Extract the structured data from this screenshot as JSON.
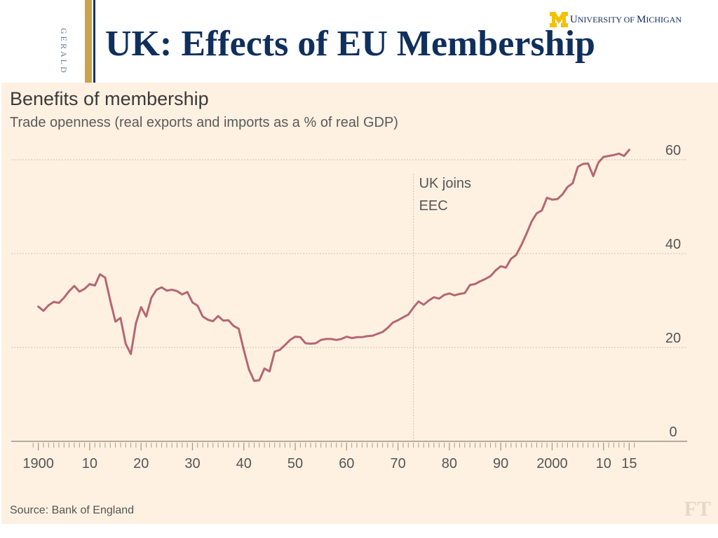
{
  "sidebar": {
    "label": "GERALD"
  },
  "header": {
    "university": {
      "initial": "U",
      "first": "NIVERSITY OF",
      "second_initial": "M",
      "second": "ICHIGAN"
    }
  },
  "slide": {
    "title": "UK:  Effects of EU Membership"
  },
  "colors": {
    "line": "#b56673",
    "grid": "#c9bfb3",
    "panel_bg": "#fff1e2",
    "title": "#0f2f5d",
    "gold": "#c9a44a",
    "navy": "#17345e"
  },
  "chart_data": {
    "type": "line",
    "title": "Benefits of membership",
    "subtitle": "Trade openness (real exports and imports as a % of real GDP)",
    "xlabel": "",
    "ylabel": "",
    "xlim": [
      1898,
      2020
    ],
    "ylim": [
      0,
      60
    ],
    "x_ticks": [
      1900,
      1910,
      1920,
      1930,
      1940,
      1950,
      1960,
      1970,
      1980,
      1990,
      2000,
      2010,
      2015
    ],
    "x_tick_labels": [
      "1900",
      "10",
      "20",
      "30",
      "40",
      "50",
      "60",
      "70",
      "80",
      "90",
      "2000",
      "10",
      "15"
    ],
    "y_ticks": [
      0,
      20,
      40,
      60
    ],
    "y_tick_labels": [
      "0",
      "20",
      "40",
      "60"
    ],
    "annotation": {
      "x": 1973,
      "line1": "UK joins",
      "line2": "EEC"
    },
    "source": "Source: Bank of England",
    "brand": "FT",
    "series": [
      {
        "name": "Trade openness",
        "x": [
          1900,
          1901,
          1902,
          1903,
          1904,
          1905,
          1906,
          1907,
          1908,
          1909,
          1910,
          1911,
          1912,
          1913,
          1914,
          1915,
          1916,
          1917,
          1918,
          1919,
          1920,
          1921,
          1922,
          1923,
          1924,
          1925,
          1926,
          1927,
          1928,
          1929,
          1930,
          1931,
          1932,
          1933,
          1934,
          1935,
          1936,
          1937,
          1938,
          1939,
          1940,
          1941,
          1942,
          1943,
          1944,
          1945,
          1946,
          1947,
          1948,
          1949,
          1950,
          1951,
          1952,
          1953,
          1954,
          1955,
          1956,
          1957,
          1958,
          1959,
          1960,
          1961,
          1962,
          1963,
          1964,
          1965,
          1966,
          1967,
          1968,
          1969,
          1970,
          1971,
          1972,
          1973,
          1974,
          1975,
          1976,
          1977,
          1978,
          1979,
          1980,
          1981,
          1982,
          1983,
          1984,
          1985,
          1986,
          1987,
          1988,
          1989,
          1990,
          1991,
          1992,
          1993,
          1994,
          1995,
          1996,
          1997,
          1998,
          1999,
          2000,
          2001,
          2002,
          2003,
          2004,
          2005,
          2006,
          2007,
          2008,
          2009,
          2010,
          2011,
          2012,
          2013,
          2014,
          2015
        ],
        "values": [
          28.7,
          27.8,
          29.0,
          29.7,
          29.5,
          30.6,
          32.0,
          33.1,
          31.9,
          32.5,
          33.5,
          33.2,
          35.6,
          34.9,
          30.0,
          25.5,
          26.3,
          20.8,
          18.6,
          25.2,
          28.6,
          26.6,
          30.6,
          32.3,
          32.8,
          32.1,
          32.3,
          32.0,
          31.3,
          31.8,
          29.6,
          28.9,
          26.6,
          25.9,
          25.6,
          26.7,
          25.7,
          25.8,
          24.6,
          24.0,
          19.4,
          15.3,
          12.9,
          13.0,
          15.5,
          14.9,
          19.1,
          19.5,
          20.5,
          21.6,
          22.3,
          22.2,
          20.9,
          20.8,
          20.9,
          21.6,
          21.8,
          21.8,
          21.6,
          21.8,
          22.3,
          22.0,
          22.2,
          22.2,
          22.4,
          22.5,
          22.9,
          23.3,
          24.2,
          25.3,
          25.8,
          26.4,
          27.0,
          28.5,
          29.8,
          29.1,
          30.0,
          30.7,
          30.4,
          31.2,
          31.5,
          31.1,
          31.4,
          31.6,
          33.3,
          33.5,
          34.1,
          34.6,
          35.2,
          36.4,
          37.3,
          37.0,
          38.9,
          39.7,
          41.8,
          44.2,
          46.8,
          48.6,
          49.2,
          51.9,
          51.5,
          51.6,
          52.6,
          54.2,
          55.0,
          58.5,
          59.1,
          59.2,
          56.5,
          59.4,
          60.6,
          60.8,
          61.0,
          61.3,
          60.8,
          62.1
        ]
      }
    ]
  }
}
